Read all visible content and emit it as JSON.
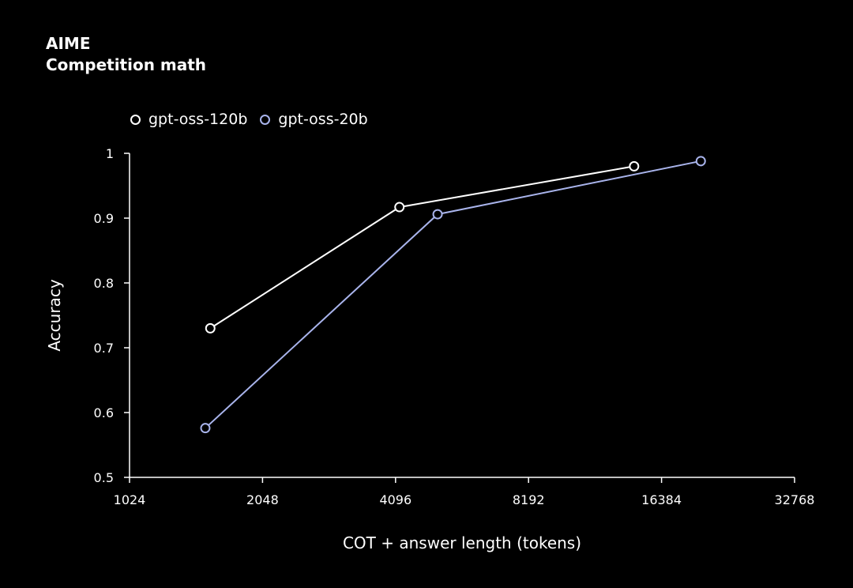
{
  "header": {
    "title": "AIME",
    "subtitle": "Competition math"
  },
  "colors": {
    "background": "#000000",
    "axis": "#ffffff"
  },
  "chart_data": {
    "type": "line",
    "title": "AIME",
    "subtitle": "Competition math",
    "xlabel": "COT + answer length (tokens)",
    "ylabel": "Accuracy",
    "xscale": "log2",
    "xlim": [
      1024,
      32768
    ],
    "ylim": [
      0.5,
      1.0
    ],
    "xticks": [
      1024,
      2048,
      4096,
      8192,
      16384,
      32768
    ],
    "xtick_labels": [
      "1024",
      "2048",
      "4096",
      "8192",
      "16384",
      "32768"
    ],
    "yticks": [
      0.5,
      0.6,
      0.7,
      0.8,
      0.9,
      1.0
    ],
    "ytick_labels": [
      "0.5",
      "0.6",
      "0.7",
      "0.8",
      "0.9",
      "1"
    ],
    "grid": false,
    "legend_position": "top-left",
    "series": [
      {
        "name": "gpt-oss-120b",
        "color": "#ffffff",
        "points": [
          [
            1560,
            0.73
          ],
          [
            4180,
            0.917
          ],
          [
            14200,
            0.98
          ]
        ]
      },
      {
        "name": "gpt-oss-20b",
        "color": "#a9b4ec",
        "points": [
          [
            1520,
            0.576
          ],
          [
            5100,
            0.906
          ],
          [
            20100,
            0.988
          ]
        ]
      }
    ]
  }
}
